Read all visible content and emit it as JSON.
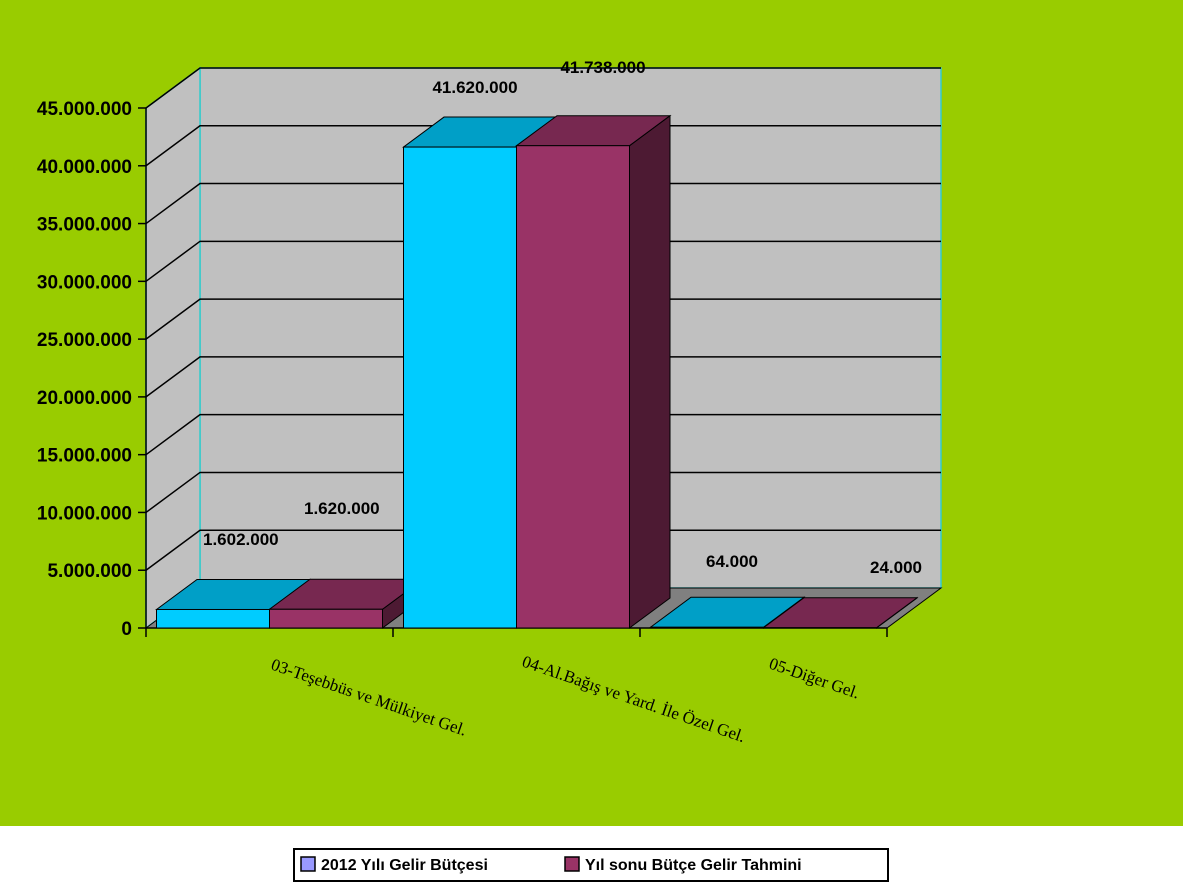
{
  "chart_data": {
    "type": "bar",
    "categories": [
      "03-Teşebbüs ve Mülkiyet Gel.",
      "04-Al.Bağış ve Yard. İle Özel Gel.",
      "05-Diğer Gel."
    ],
    "series": [
      {
        "name": "2012 Yılı Gelir Bütçesi",
        "values": [
          1602000,
          41620000,
          64000
        ],
        "value_labels": [
          "1.602.000",
          "41.620.000",
          "64.000"
        ],
        "color": "#00ccff"
      },
      {
        "name": "Yıl sonu Bütçe Gelir Tahmini",
        "values": [
          1620000,
          41738000,
          24000
        ],
        "value_labels": [
          "1.620.000",
          "41.738.000",
          "24.000"
        ],
        "color": "#993366"
      }
    ],
    "ylim": [
      0,
      45000000
    ],
    "yticks": [
      0,
      5000000,
      10000000,
      15000000,
      20000000,
      25000000,
      30000000,
      35000000,
      40000000,
      45000000
    ],
    "ytick_labels": [
      "0",
      "5.000.000",
      "10.000.000",
      "15.000.000",
      "20.000.000",
      "25.000.000",
      "30.000.000",
      "35.000.000",
      "40.000.000",
      "45.000.000"
    ],
    "grid": true,
    "legend_position": "bottom",
    "colors": {
      "chart_background": "#99cc00",
      "plot_wall": "#c0c0c0",
      "floor": "#808080",
      "wall_border": "#33cccc"
    }
  }
}
